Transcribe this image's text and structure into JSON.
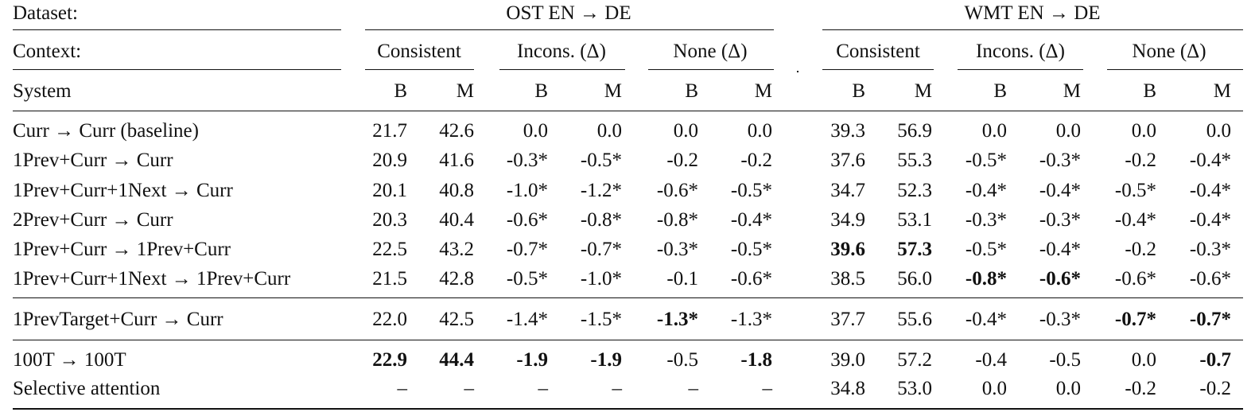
{
  "header": {
    "dataset_label": "Dataset:",
    "context_label": "Context:",
    "system_label": "System",
    "datasets": [
      "OST EN → DE",
      "WMT EN → DE"
    ],
    "contexts": [
      "Consistent",
      "Incons. (Δ)",
      "None (Δ)"
    ],
    "metrics": [
      "B",
      "M"
    ]
  },
  "rows": [
    {
      "system": "Curr → Curr (baseline)",
      "ost": [
        "21.7",
        "42.6",
        "0.0",
        "0.0",
        "0.0",
        "0.0"
      ],
      "wmt": [
        "39.3",
        "56.9",
        "0.0",
        "0.0",
        "0.0",
        "0.0"
      ],
      "ost_bold": [
        false,
        false,
        false,
        false,
        false,
        false
      ],
      "wmt_bold": [
        false,
        false,
        false,
        false,
        false,
        false
      ]
    },
    {
      "system": "1Prev+Curr → Curr",
      "ost": [
        "20.9",
        "41.6",
        "-0.3*",
        "-0.5*",
        "-0.2",
        "-0.2"
      ],
      "wmt": [
        "37.6",
        "55.3",
        "-0.5*",
        "-0.3*",
        "-0.2",
        "-0.4*"
      ],
      "ost_bold": [
        false,
        false,
        false,
        false,
        false,
        false
      ],
      "wmt_bold": [
        false,
        false,
        false,
        false,
        false,
        false
      ]
    },
    {
      "system": "1Prev+Curr+1Next → Curr",
      "ost": [
        "20.1",
        "40.8",
        "-1.0*",
        "-1.2*",
        "-0.6*",
        "-0.5*"
      ],
      "wmt": [
        "34.7",
        "52.3",
        "-0.4*",
        "-0.4*",
        "-0.5*",
        "-0.4*"
      ],
      "ost_bold": [
        false,
        false,
        false,
        false,
        false,
        false
      ],
      "wmt_bold": [
        false,
        false,
        false,
        false,
        false,
        false
      ]
    },
    {
      "system": "2Prev+Curr → Curr",
      "ost": [
        "20.3",
        "40.4",
        "-0.6*",
        "-0.8*",
        "-0.8*",
        "-0.4*"
      ],
      "wmt": [
        "34.9",
        "53.1",
        "-0.3*",
        "-0.3*",
        "-0.4*",
        "-0.4*"
      ],
      "ost_bold": [
        false,
        false,
        false,
        false,
        false,
        false
      ],
      "wmt_bold": [
        false,
        false,
        false,
        false,
        false,
        false
      ]
    },
    {
      "system": "1Prev+Curr → 1Prev+Curr",
      "ost": [
        "22.5",
        "43.2",
        "-0.7*",
        "-0.7*",
        "-0.3*",
        "-0.5*"
      ],
      "wmt": [
        "39.6",
        "57.3",
        "-0.5*",
        "-0.4*",
        "-0.2",
        "-0.3*"
      ],
      "ost_bold": [
        false,
        false,
        false,
        false,
        false,
        false
      ],
      "wmt_bold": [
        true,
        true,
        false,
        false,
        false,
        false
      ]
    },
    {
      "system": "1Prev+Curr+1Next → 1Prev+Curr",
      "ost": [
        "21.5",
        "42.8",
        "-0.5*",
        "-1.0*",
        "-0.1",
        "-0.6*"
      ],
      "wmt": [
        "38.5",
        "56.0",
        "-0.8*",
        "-0.6*",
        "-0.6*",
        "-0.6*"
      ],
      "ost_bold": [
        false,
        false,
        false,
        false,
        false,
        false
      ],
      "wmt_bold": [
        false,
        false,
        true,
        true,
        false,
        false
      ]
    },
    {
      "system": "1PrevTarget+Curr → Curr",
      "ost": [
        "22.0",
        "42.5",
        "-1.4*",
        "-1.5*",
        "-1.3*",
        "-1.3*"
      ],
      "wmt": [
        "37.7",
        "55.6",
        "-0.4*",
        "-0.3*",
        "-0.7*",
        "-0.7*"
      ],
      "ost_bold": [
        false,
        false,
        false,
        false,
        true,
        false
      ],
      "wmt_bold": [
        false,
        false,
        false,
        false,
        true,
        true
      ]
    },
    {
      "system": "100T → 100T",
      "ost": [
        "22.9",
        "44.4",
        "-1.9",
        "-1.9",
        "-0.5",
        "-1.8"
      ],
      "wmt": [
        "39.0",
        "57.2",
        "-0.4",
        "-0.5",
        "0.0",
        "-0.7"
      ],
      "ost_bold": [
        true,
        true,
        true,
        true,
        false,
        true
      ],
      "wmt_bold": [
        false,
        false,
        false,
        false,
        false,
        true
      ]
    },
    {
      "system": "Selective attention",
      "ost": [
        "–",
        "–",
        "–",
        "–",
        "–",
        "–"
      ],
      "wmt": [
        "34.8",
        "53.0",
        "0.0",
        "0.0",
        "-0.2",
        "-0.2"
      ],
      "ost_bold": [
        false,
        false,
        false,
        false,
        false,
        false
      ],
      "wmt_bold": [
        false,
        false,
        false,
        false,
        false,
        false
      ]
    }
  ]
}
